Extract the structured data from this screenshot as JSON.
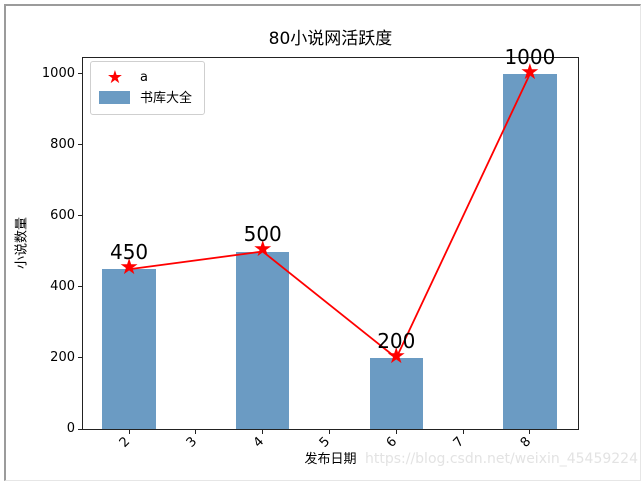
{
  "chart_data": {
    "type": "bar",
    "title": "80小说网活跃度",
    "xlabel": "发布日期",
    "ylabel": "小说数量",
    "x": [
      2,
      4,
      6,
      8
    ],
    "series": [
      {
        "name": "a",
        "type": "line",
        "marker": "star",
        "color": "#ff0000",
        "values": [
          450,
          500,
          200,
          1000
        ]
      },
      {
        "name": "书库大全",
        "type": "bar",
        "color": "#6b9bc3",
        "values": [
          450,
          500,
          200,
          1000
        ]
      }
    ],
    "point_labels": [
      "450",
      "500",
      "200",
      "1000"
    ],
    "bar_width": 0.8,
    "xtick_labels": [
      "2",
      "3",
      "4",
      "5",
      "6",
      "7",
      "8"
    ],
    "xtick_values": [
      2,
      3,
      4,
      5,
      6,
      7,
      8
    ],
    "xtick_rotation": 45,
    "ytick_labels": [
      "0",
      "200",
      "400",
      "600",
      "800",
      "1000"
    ],
    "ytick_values": [
      0,
      200,
      400,
      600,
      800,
      1000
    ],
    "xlim": [
      1.31,
      8.72
    ],
    "ylim": [
      0,
      1045
    ],
    "grid": false,
    "legend_position": "upper left"
  },
  "legend": {
    "items": [
      {
        "label": "a"
      },
      {
        "label": "书库大全"
      }
    ]
  },
  "icons": {
    "star": "★"
  },
  "colors": {
    "bar": "#6b9bc3",
    "line": "#ff0000",
    "axis": "#222222",
    "watermark": "#e3e3e3"
  },
  "watermark": {
    "text": "https://blog.csdn.net/weixin_45459224"
  }
}
